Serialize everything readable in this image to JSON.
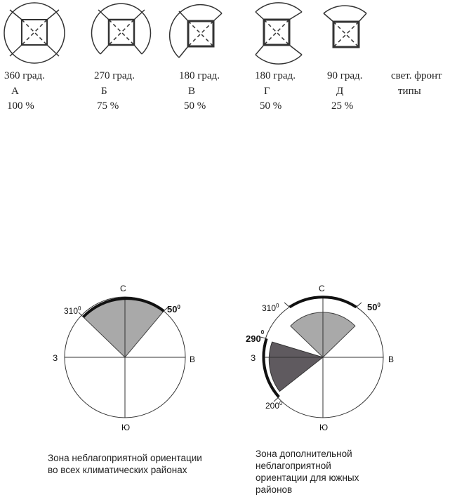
{
  "types": [
    {
      "degrees": "360 град.",
      "letter": "А",
      "percent": "100 %"
    },
    {
      "degrees": "270 град.",
      "letter": "Б",
      "percent": "75 %"
    },
    {
      "degrees": "180 град.",
      "letter": "В",
      "percent": "50 %"
    },
    {
      "degrees": "180 град.",
      "letter": "Г",
      "percent": "50 %"
    },
    {
      "degrees": "90 град.",
      "letter": "Д",
      "percent": "25 %"
    }
  ],
  "row_label_top": "свет. фронт",
  "row_label_bottom": "типы",
  "compass": {
    "north": "С",
    "south": "Ю",
    "east": "В",
    "west": "З"
  },
  "diagram_left": {
    "angle_310": "310",
    "angle_50": "50",
    "degree_sign": "0",
    "caption": "Зона неблагоприятной ориентации\nво всех климатических районах"
  },
  "diagram_right": {
    "angle_310": "310",
    "angle_50": "50",
    "angle_290": "290",
    "angle_200": "200",
    "degree_sign": "0",
    "caption": "Зона дополнительной\nнеблагоприятной\nориентации для южных\nрайонов"
  },
  "colors": {
    "light_sector": "#a9a9a9",
    "dark_sector": "#5f5a5f",
    "outline": "#222222"
  }
}
